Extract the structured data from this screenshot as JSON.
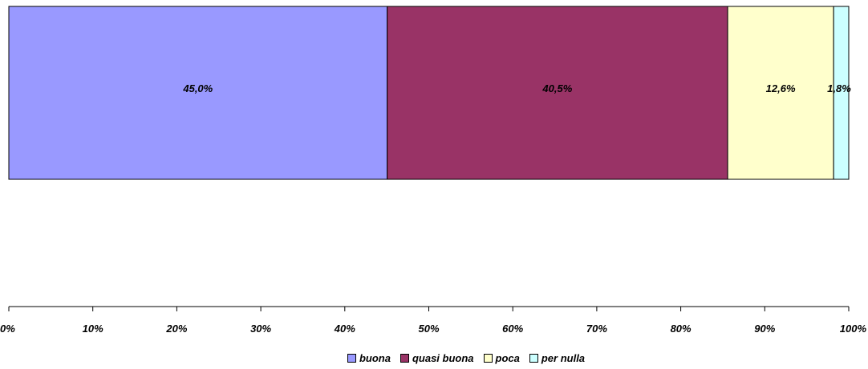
{
  "chart_data": {
    "type": "bar",
    "orientation": "horizontal",
    "stacked": true,
    "normalized": true,
    "categories": [
      ""
    ],
    "series": [
      {
        "name": "buona",
        "values": [
          45.0
        ],
        "label": "45,0%",
        "color": "#9999FF"
      },
      {
        "name": "quasi buona",
        "values": [
          40.5
        ],
        "label": "40,5%",
        "color": "#993366"
      },
      {
        "name": "poca",
        "values": [
          12.6
        ],
        "label": "12,6%",
        "color": "#FFFFCC"
      },
      {
        "name": "per nulla",
        "values": [
          1.8
        ],
        "label": "1,8%",
        "color": "#CCFFFF"
      }
    ],
    "xlim": [
      0,
      100
    ],
    "x_ticks": [
      0,
      10,
      20,
      30,
      40,
      50,
      60,
      70,
      80,
      90,
      100
    ],
    "x_tick_labels": [
      "0%",
      "10%",
      "20%",
      "30%",
      "40%",
      "50%",
      "60%",
      "70%",
      "80%",
      "90%",
      "100%"
    ],
    "grid": false,
    "legend_position": "bottom"
  }
}
